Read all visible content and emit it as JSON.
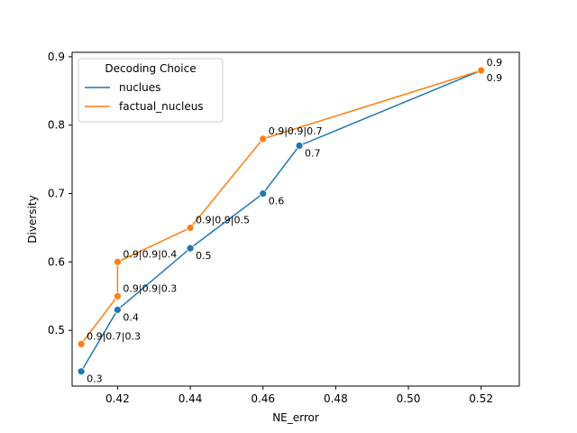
{
  "chart_data": {
    "type": "line",
    "title": "",
    "xlabel": "NE_error",
    "ylabel": "Diversity",
    "xlim": [
      0.4075,
      0.5305
    ],
    "ylim": [
      0.4185,
      0.9065
    ],
    "xticks": [
      "0.42",
      "0.44",
      "0.46",
      "0.48",
      "0.50",
      "0.52"
    ],
    "xtick_values": [
      0.42,
      0.44,
      0.46,
      0.48,
      0.5,
      0.52
    ],
    "yticks": [
      "0.5",
      "0.6",
      "0.7",
      "0.8",
      "0.9"
    ],
    "ytick_values": [
      0.5,
      0.6,
      0.7,
      0.8,
      0.9
    ],
    "grid": false,
    "legend": {
      "title": "Decoding Choice",
      "placement": "upper-left"
    },
    "series": [
      {
        "name": "nuclues",
        "color": "#1f77b4",
        "points": [
          {
            "x": 0.41,
            "y": 0.44,
            "label": "0.3"
          },
          {
            "x": 0.42,
            "y": 0.53,
            "label": "0.4"
          },
          {
            "x": 0.44,
            "y": 0.62,
            "label": "0.5"
          },
          {
            "x": 0.46,
            "y": 0.7,
            "label": "0.6"
          },
          {
            "x": 0.47,
            "y": 0.77,
            "label": "0.7"
          },
          {
            "x": 0.52,
            "y": 0.88,
            "label": "0.9"
          }
        ]
      },
      {
        "name": "factual_nucleus",
        "color": "#ff7f0e",
        "points": [
          {
            "x": 0.41,
            "y": 0.48,
            "label": "0.9|0.7|0.3"
          },
          {
            "x": 0.42,
            "y": 0.55,
            "label": "0.9|0.9|0.3"
          },
          {
            "x": 0.42,
            "y": 0.6,
            "label": "0.9|0.9|0.4"
          },
          {
            "x": 0.44,
            "y": 0.65,
            "label": "0.9|0.9|0.5"
          },
          {
            "x": 0.46,
            "y": 0.78,
            "label": "0.9|0.9|0.7"
          },
          {
            "x": 0.52,
            "y": 0.88,
            "label": "0.9"
          }
        ]
      }
    ]
  }
}
